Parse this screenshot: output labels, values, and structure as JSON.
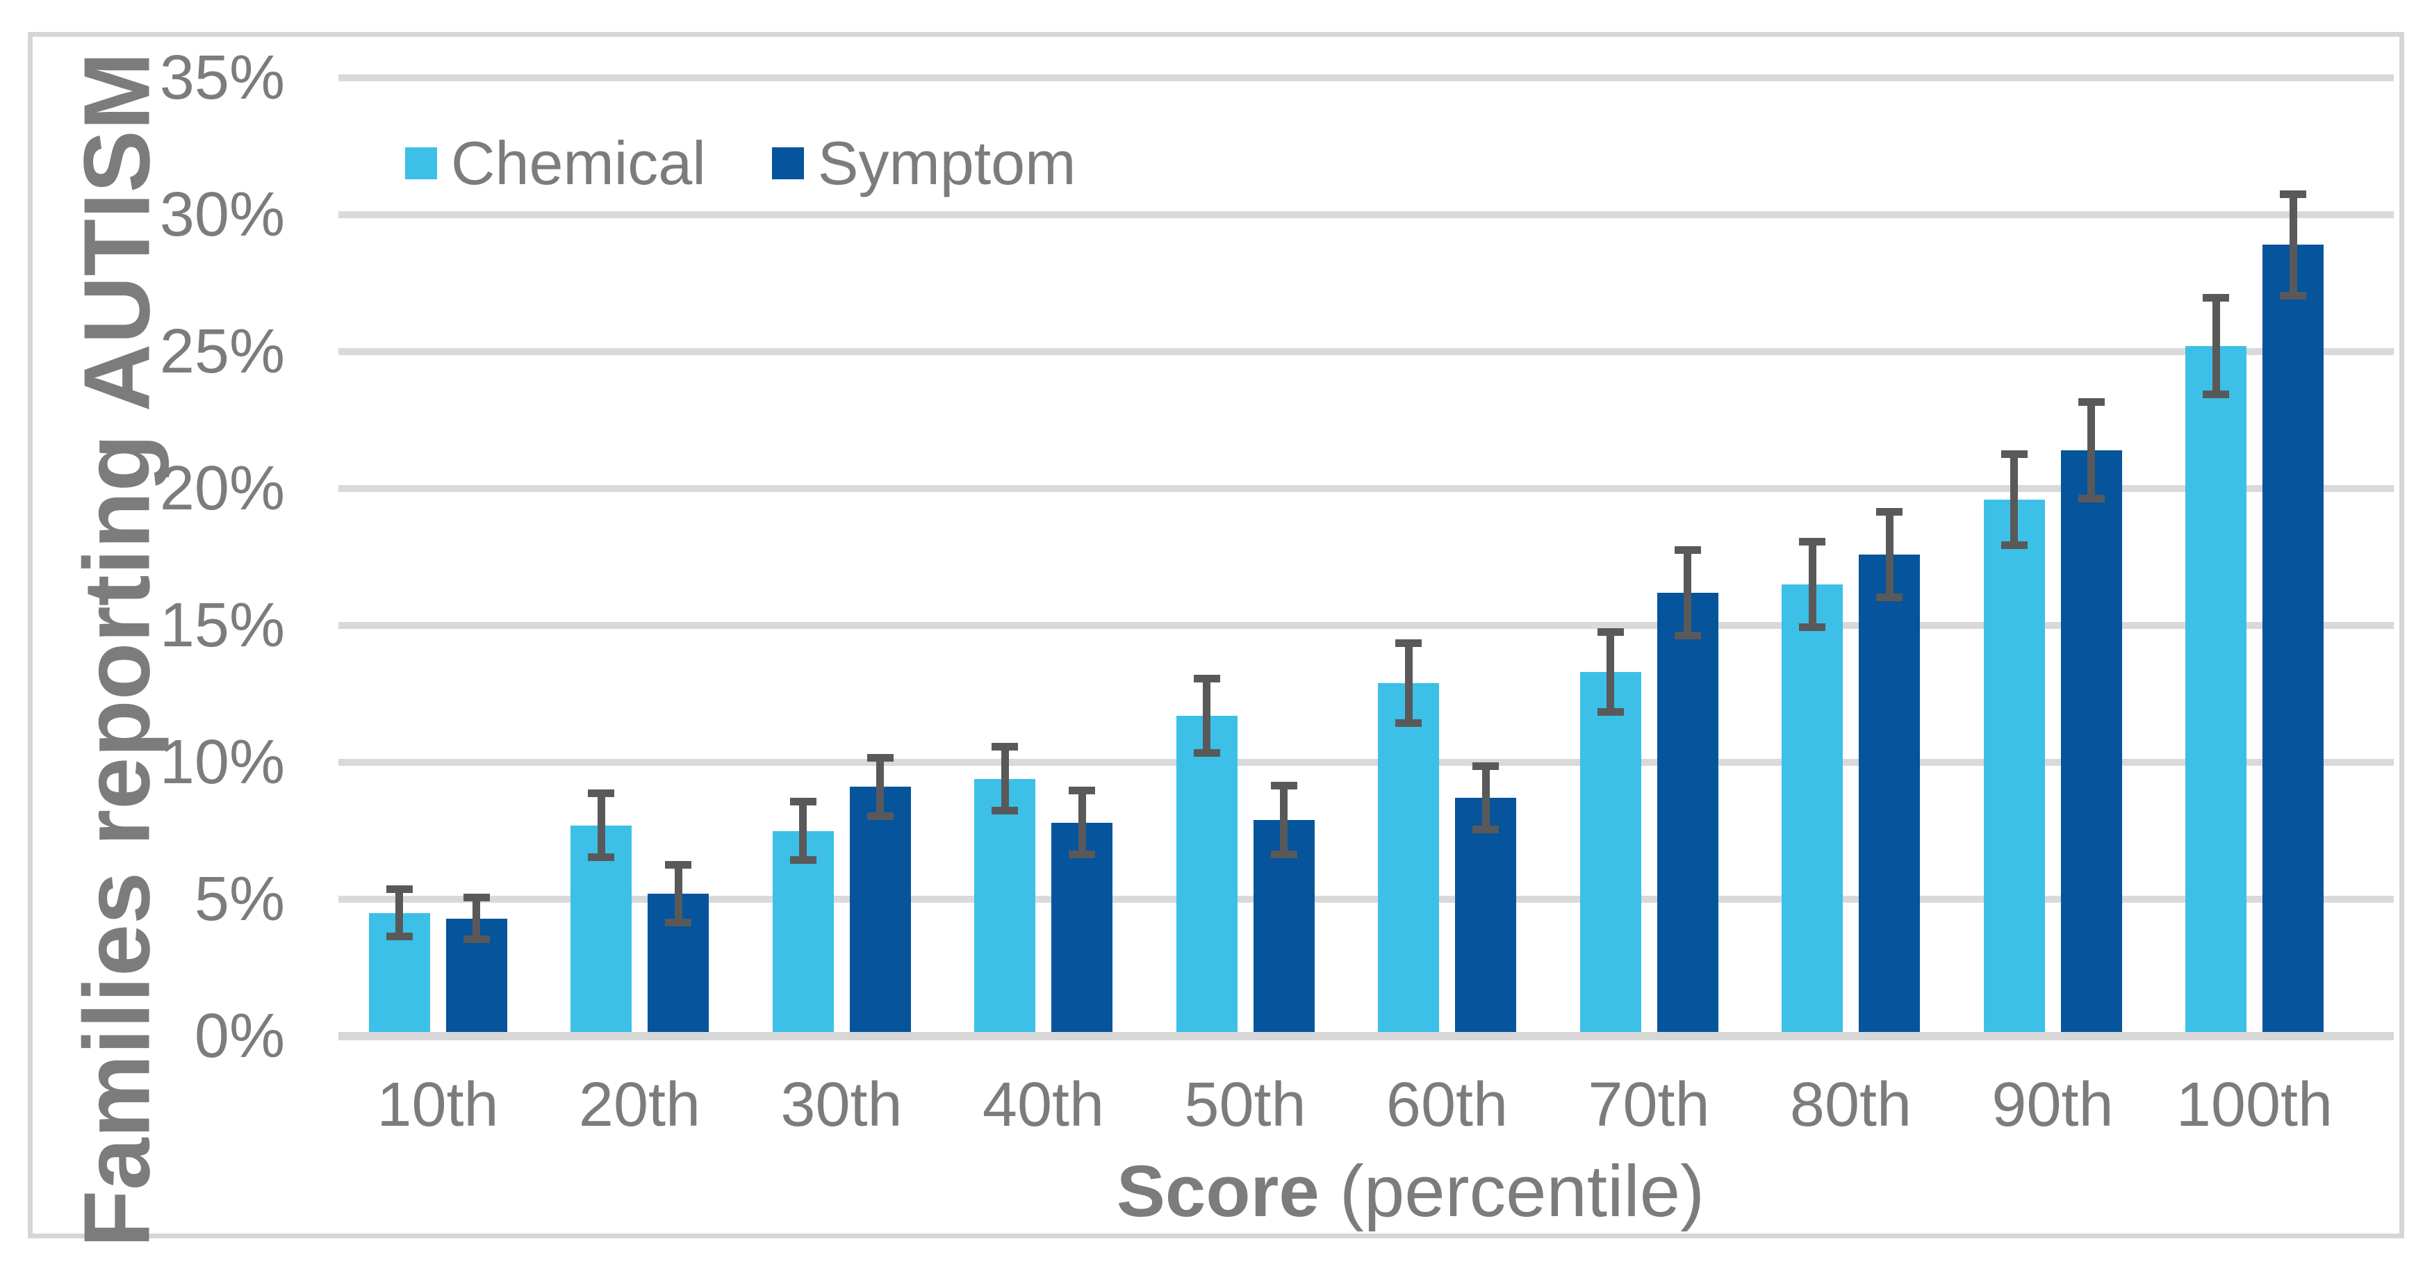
{
  "chart_data": {
    "type": "bar",
    "title": "",
    "categories": [
      "10th",
      "20th",
      "30th",
      "40th",
      "50th",
      "60th",
      "70th",
      "80th",
      "90th",
      "100th"
    ],
    "series": [
      {
        "name": "Chemical",
        "color": "#3CC0E8",
        "values": [
          4.5,
          7.7,
          7.5,
          9.4,
          11.7,
          12.9,
          13.3,
          16.5,
          19.6,
          25.2
        ],
        "errors": [
          1.0,
          1.3,
          1.2,
          1.3,
          1.5,
          1.6,
          1.6,
          1.7,
          1.8,
          1.9
        ]
      },
      {
        "name": "Symptom",
        "color": "#05549C",
        "values": [
          4.3,
          5.2,
          9.1,
          7.8,
          7.9,
          8.7,
          16.2,
          17.6,
          21.4,
          28.9
        ],
        "errors": [
          0.9,
          1.2,
          1.2,
          1.3,
          1.4,
          1.3,
          1.7,
          1.7,
          1.9,
          2.0
        ]
      }
    ],
    "xlabel_bold": "Score",
    "xlabel_rest": " (percentile)",
    "ylabel": "Families reporting AUTISM",
    "y_ticks": [
      "0%",
      "5%",
      "10%",
      "15%",
      "20%",
      "25%",
      "30%",
      "35%"
    ],
    "y_tick_step": 5,
    "ylim": [
      0,
      35
    ],
    "grid": true,
    "legend_position": "top",
    "error_bar_color": "#595959",
    "gridline_color": "#D9D9D9",
    "axis_text_color": "#7C7C7C",
    "frame_border_color": "#D6D6D6"
  }
}
